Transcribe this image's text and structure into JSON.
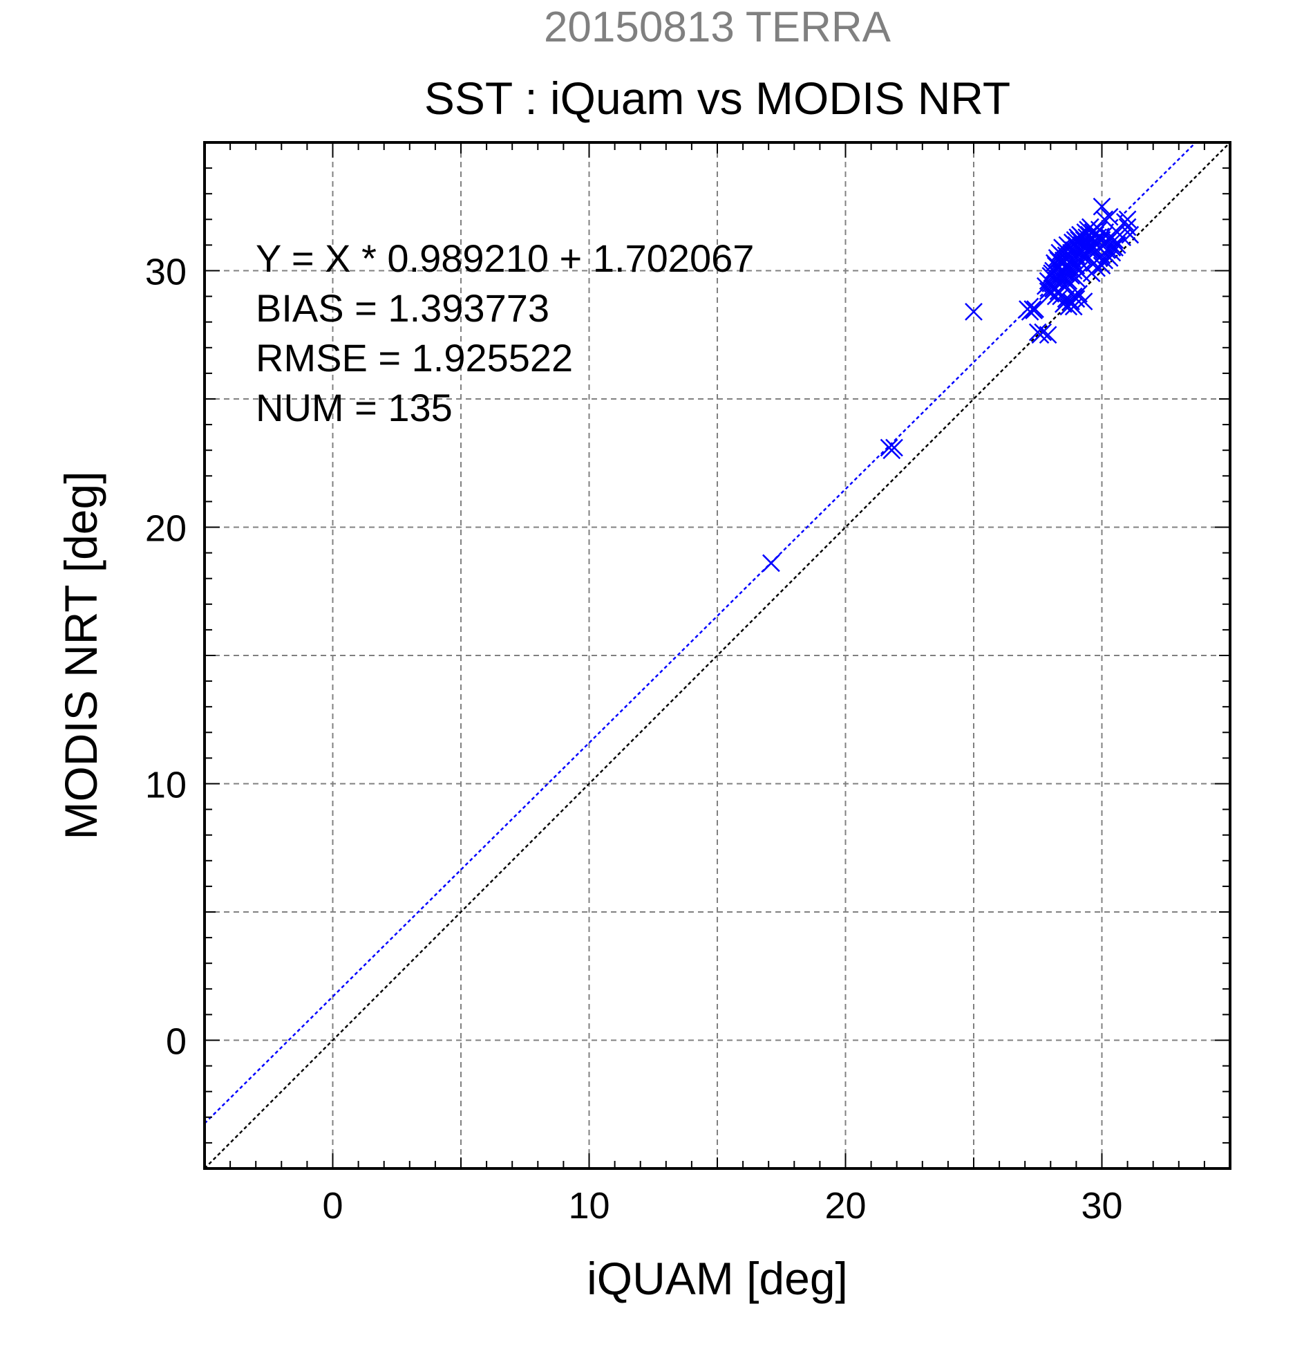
{
  "chart_data": {
    "type": "scatter",
    "title": "20150813 TERRA",
    "subtitle": "SST : iQuam vs MODIS NRT",
    "xlabel": "iQUAM [deg]",
    "ylabel": "MODIS NRT [deg]",
    "xlim": [
      -5,
      35
    ],
    "ylim": [
      -5,
      35
    ],
    "xticks": [
      0,
      10,
      20,
      30
    ],
    "yticks": [
      0,
      10,
      20,
      30
    ],
    "grid": true,
    "grid_step": 5,
    "minor_tick_step": 1,
    "colors": {
      "title": "#808080",
      "points": "#0000ff",
      "fit_line": "#0000ff",
      "identity_line": "#000000",
      "grid": "#808080",
      "text": "#000000"
    },
    "marker": "x",
    "stats_text": [
      "Y = X * 0.989210 + 1.702067",
      "BIAS = 1.393773",
      "RMSE = 1.925522",
      "NUM = 135"
    ],
    "fit_line": {
      "slope": 0.98921,
      "intercept": 1.702067
    },
    "identity_line": {
      "slope": 1,
      "intercept": 0
    },
    "points": [
      [
        17.1,
        18.6
      ],
      [
        21.7,
        23.1
      ],
      [
        21.8,
        23.0
      ],
      [
        21.9,
        23.1
      ],
      [
        25.0,
        28.4
      ],
      [
        27.1,
        28.5
      ],
      [
        27.2,
        28.4
      ],
      [
        27.3,
        28.5
      ],
      [
        27.35,
        28.45
      ],
      [
        27.4,
        28.5
      ],
      [
        27.5,
        27.6
      ],
      [
        27.6,
        27.5
      ],
      [
        27.7,
        27.6
      ],
      [
        27.9,
        27.5
      ],
      [
        27.8,
        29.4
      ],
      [
        27.9,
        29.6
      ],
      [
        28.0,
        29.5
      ],
      [
        28.0,
        29.8
      ],
      [
        28.05,
        29.9
      ],
      [
        28.1,
        29.7
      ],
      [
        28.1,
        30.0
      ],
      [
        28.15,
        30.3
      ],
      [
        28.2,
        29.6
      ],
      [
        28.2,
        30.2
      ],
      [
        28.25,
        30.5
      ],
      [
        28.3,
        29.8
      ],
      [
        28.3,
        30.1
      ],
      [
        28.3,
        30.4
      ],
      [
        28.35,
        30.7
      ],
      [
        28.4,
        29.5
      ],
      [
        28.4,
        29.9
      ],
      [
        28.4,
        30.3
      ],
      [
        28.45,
        30.6
      ],
      [
        28.45,
        30.9
      ],
      [
        28.5,
        29.7
      ],
      [
        28.5,
        30.0
      ],
      [
        28.5,
        30.4
      ],
      [
        28.55,
        30.8
      ],
      [
        28.6,
        29.4
      ],
      [
        28.6,
        29.9
      ],
      [
        28.6,
        30.2
      ],
      [
        28.6,
        30.6
      ],
      [
        28.65,
        31.0
      ],
      [
        28.7,
        29.6
      ],
      [
        28.7,
        30.1
      ],
      [
        28.7,
        30.5
      ],
      [
        28.75,
        30.9
      ],
      [
        28.8,
        29.8
      ],
      [
        28.8,
        30.3
      ],
      [
        28.8,
        30.7
      ],
      [
        28.85,
        31.1
      ],
      [
        28.9,
        30.0
      ],
      [
        28.9,
        30.4
      ],
      [
        28.9,
        30.8
      ],
      [
        28.95,
        31.2
      ],
      [
        29.0,
        29.7
      ],
      [
        29.0,
        30.2
      ],
      [
        29.0,
        30.6
      ],
      [
        29.0,
        31.0
      ],
      [
        29.05,
        31.3
      ],
      [
        29.1,
        30.0
      ],
      [
        29.1,
        30.4
      ],
      [
        29.1,
        30.8
      ],
      [
        29.1,
        31.2
      ],
      [
        29.15,
        31.4
      ],
      [
        29.2,
        30.3
      ],
      [
        29.2,
        30.7
      ],
      [
        29.2,
        31.0
      ],
      [
        29.25,
        31.3
      ],
      [
        29.3,
        30.5
      ],
      [
        29.3,
        30.9
      ],
      [
        29.3,
        31.2
      ],
      [
        29.35,
        31.5
      ],
      [
        29.4,
        30.6
      ],
      [
        29.4,
        31.0
      ],
      [
        29.4,
        31.3
      ],
      [
        29.45,
        31.6
      ],
      [
        29.5,
        30.8
      ],
      [
        29.5,
        31.1
      ],
      [
        29.5,
        31.4
      ],
      [
        29.55,
        31.7
      ],
      [
        29.6,
        30.9
      ],
      [
        29.6,
        31.3
      ],
      [
        29.65,
        31.5
      ],
      [
        29.7,
        30.7
      ],
      [
        29.7,
        31.1
      ],
      [
        29.75,
        31.4
      ],
      [
        29.8,
        31.0
      ],
      [
        29.85,
        31.3
      ],
      [
        29.9,
        30.9
      ],
      [
        29.9,
        31.6
      ],
      [
        30.0,
        31.2
      ],
      [
        30.0,
        30.6
      ],
      [
        30.0,
        32.5
      ],
      [
        30.1,
        31.4
      ],
      [
        30.1,
        32.0
      ],
      [
        30.2,
        30.8
      ],
      [
        30.2,
        31.1
      ],
      [
        30.3,
        31.3
      ],
      [
        30.3,
        32.1
      ],
      [
        30.4,
        30.9
      ],
      [
        30.5,
        31.2
      ],
      [
        30.6,
        31.5
      ],
      [
        30.8,
        31.3
      ],
      [
        30.9,
        31.9
      ],
      [
        31.0,
        31.7
      ],
      [
        31.1,
        31.4
      ],
      [
        31.0,
        32.0
      ],
      [
        28.5,
        28.7
      ],
      [
        28.6,
        28.9
      ],
      [
        28.7,
        28.6
      ],
      [
        28.8,
        28.8
      ],
      [
        28.9,
        29.0
      ],
      [
        28.9,
        28.6
      ],
      [
        29.0,
        28.9
      ],
      [
        29.1,
        29.1
      ],
      [
        29.3,
        28.8
      ],
      [
        28.4,
        29.0
      ],
      [
        28.3,
        29.2
      ],
      [
        28.2,
        29.0
      ],
      [
        28.1,
        29.3
      ],
      [
        28.0,
        29.1
      ],
      [
        27.9,
        29.2
      ],
      [
        29.6,
        29.9
      ],
      [
        29.7,
        30.3
      ],
      [
        29.8,
        30.1
      ],
      [
        29.9,
        30.5
      ],
      [
        30.0,
        30.2
      ],
      [
        30.1,
        30.4
      ],
      [
        30.2,
        30.6
      ],
      [
        30.3,
        30.5
      ],
      [
        30.4,
        30.7
      ],
      [
        30.5,
        30.9
      ],
      [
        30.6,
        31.0
      ],
      [
        29.2,
        29.9
      ]
    ]
  }
}
